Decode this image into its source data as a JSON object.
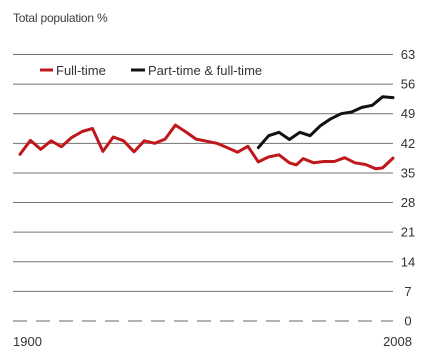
{
  "chart_data": {
    "type": "line",
    "title": "Total population %",
    "xlabel": "",
    "ylabel": "",
    "xlim": [
      1900,
      2008
    ],
    "ylim": [
      0,
      63
    ],
    "yticks": [
      0,
      7,
      14,
      21,
      28,
      35,
      42,
      49,
      56,
      63
    ],
    "y_tick_labels": [
      "0",
      "7",
      "14",
      "21",
      "28",
      "35",
      "42",
      "49",
      "56",
      "63"
    ],
    "x_tick_labels": [
      "1900",
      "2008"
    ],
    "grid": true,
    "legend_position": "top-left",
    "series": [
      {
        "name": "Full-time",
        "color": "#c0171c",
        "x": [
          1900,
          1903,
          1906,
          1909,
          1912,
          1915,
          1918,
          1921,
          1924,
          1927,
          1930,
          1933,
          1936,
          1939,
          1942,
          1945,
          1948,
          1951,
          1954,
          1957,
          1960,
          1963,
          1966,
          1969,
          1972,
          1975,
          1978,
          1980,
          1982,
          1985,
          1988,
          1991,
          1994,
          1997,
          2000,
          2003,
          2005,
          2008
        ],
        "values": [
          39.4,
          42.7,
          40.6,
          42.6,
          41.2,
          43.4,
          44.8,
          45.5,
          40.1,
          43.5,
          42.6,
          40.0,
          42.6,
          42.0,
          43.0,
          46.3,
          44.7,
          43.0,
          42.5,
          42.0,
          41.0,
          39.9,
          41.3,
          37.6,
          38.8,
          39.3,
          37.4,
          36.9,
          38.4,
          37.4,
          37.7,
          37.7,
          38.6,
          37.4,
          37.0,
          36.0,
          36.2,
          38.5
        ]
      },
      {
        "name": "Part-time & full-time",
        "color": "#111111",
        "x": [
          1969,
          1972,
          1975,
          1978,
          1981,
          1984,
          1987,
          1990,
          1993,
          1996,
          1999,
          2002,
          2005,
          2008
        ],
        "values": [
          41.0,
          43.8,
          44.6,
          42.9,
          44.6,
          43.8,
          46.2,
          47.8,
          49.0,
          49.4,
          50.5,
          51.0,
          53.0,
          52.8
        ]
      }
    ]
  }
}
